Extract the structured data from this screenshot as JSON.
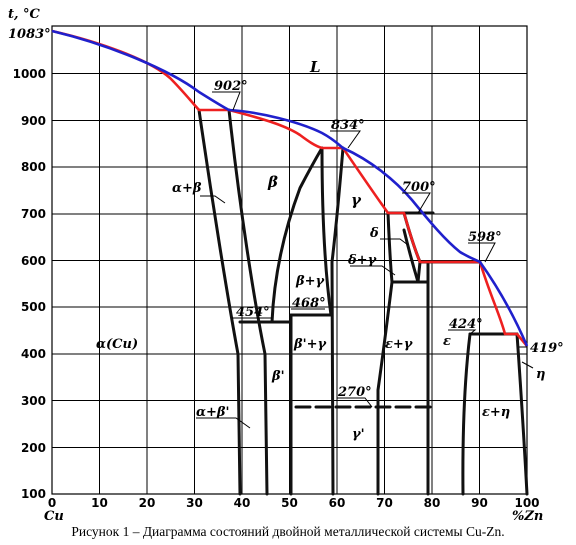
{
  "axes": {
    "y_unit": "t, °C",
    "x_left_label": "Cu",
    "x_right_label": "%Zn",
    "y_ticks": [
      "100",
      "200",
      "300",
      "400",
      "500",
      "600",
      "700",
      "800",
      "900",
      "1000"
    ],
    "x_ticks": [
      "0",
      "10",
      "20",
      "30",
      "40",
      "50",
      "60",
      "70",
      "80",
      "90",
      "100"
    ],
    "y_range": [
      100,
      1083
    ],
    "x_range": [
      0,
      100
    ]
  },
  "temperatures": {
    "cu_melt": "1083°",
    "t902": "902°",
    "t834": "834°",
    "t700": "700°",
    "t598": "598°",
    "t454": "454°",
    "t468": "468°",
    "t424": "424°",
    "t419": "419°",
    "t270": "270°"
  },
  "phases": {
    "L": "L",
    "alpha_beta": "α+β",
    "beta": "β",
    "gamma": "γ",
    "delta": "δ",
    "delta_gamma": "δ+γ",
    "beta_gamma": "β+γ",
    "betap_gamma": "β'+γ",
    "alpha_cu": "α(Cu)",
    "betap": "β'",
    "eps_gamma": "ε+γ",
    "eps": "ε",
    "eta": "η",
    "alpha_betap": "α+β'",
    "gammap": "γ'",
    "eps_eta": "ε+η"
  },
  "colors": {
    "liquidus": "#2020cc",
    "solidus": "#ee2020",
    "boundaries": "#111111"
  },
  "caption": "Рисунок 1 – Диаграмма состояний двойной металлической системы Cu-Zn."
}
